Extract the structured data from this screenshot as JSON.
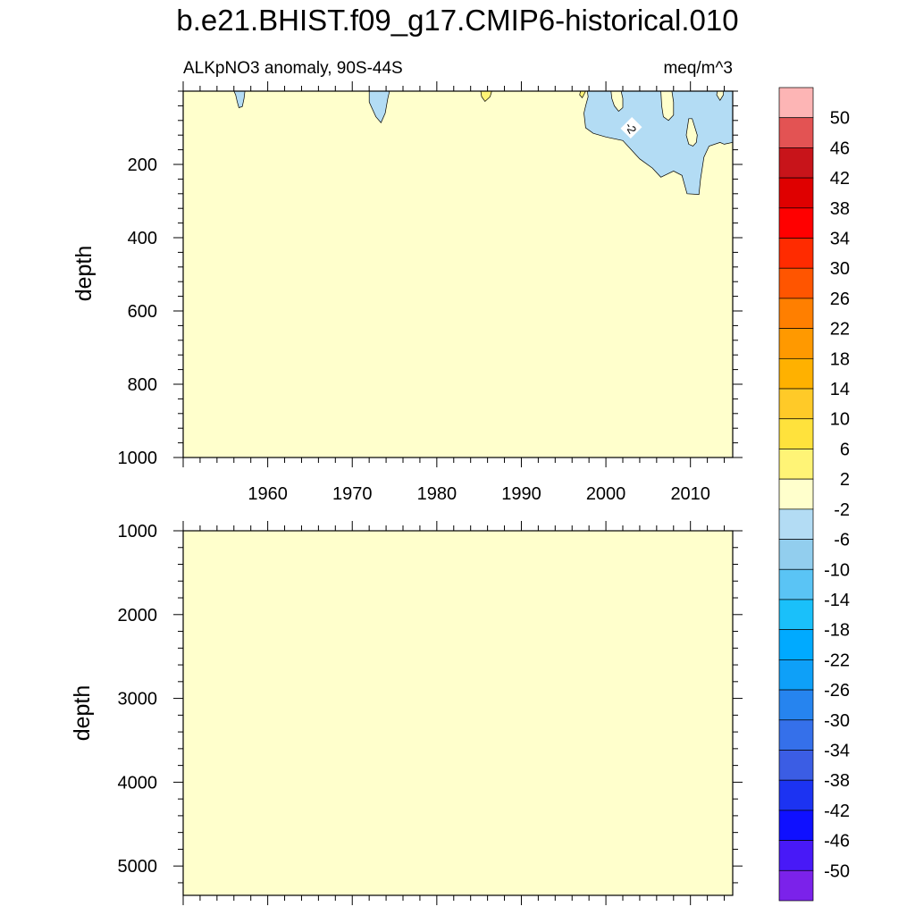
{
  "title": "b.e21.BHIST.f09_g17.CMIP6-historical.010",
  "colors": {
    "background": "#ffffff",
    "axis": "#000000",
    "contour_line": "#000000",
    "label_box": "#ffffff"
  },
  "chart_data": [
    {
      "type": "heatmap",
      "subtitle_left": "ALKpNO3 anomaly, 90S-44S",
      "subtitle_right": "meq/m^3",
      "ylabel": "depth",
      "xlim": [
        1950,
        2015
      ],
      "ylim": [
        0,
        1000
      ],
      "y_reversed": true,
      "x_ticks": [
        1960,
        1970,
        1980,
        1990,
        2000,
        2010
      ],
      "x_tick_labels": [
        "1960",
        "1970",
        "1980",
        "1990",
        "2000",
        "2010"
      ],
      "y_ticks": [
        200,
        400,
        600,
        800,
        1000
      ],
      "y_tick_labels": [
        "200",
        "400",
        "600",
        "800",
        "1000"
      ],
      "background_level": "-2 to 2",
      "background_color": "#ffffcc",
      "contour_labels": [
        {
          "text": "-2",
          "x": 2003,
          "y": 100
        }
      ],
      "regions": [
        {
          "name": "negative-anomaly-1957",
          "level": "-6 to -2",
          "color": "#b3dcf4",
          "points": [
            [
              1956.0,
              0
            ],
            [
              1956.2,
              10
            ],
            [
              1956.4,
              30
            ],
            [
              1956.6,
              45
            ],
            [
              1957.0,
              42
            ],
            [
              1957.2,
              20
            ],
            [
              1957.3,
              0
            ]
          ]
        },
        {
          "name": "negative-anomaly-1973",
          "level": "-6 to -2",
          "color": "#b3dcf4",
          "points": [
            [
              1972.0,
              0
            ],
            [
              1972.0,
              30
            ],
            [
              1972.8,
              70
            ],
            [
              1973.4,
              86
            ],
            [
              1973.9,
              60
            ],
            [
              1974.2,
              20
            ],
            [
              1974.4,
              0
            ]
          ]
        },
        {
          "name": "negative-anomaly-2008",
          "level": "-6 to -2",
          "color": "#b3dcf4",
          "points": [
            [
              1997.8,
              0
            ],
            [
              1997.9,
              15
            ],
            [
              1997.6,
              40
            ],
            [
              1997.4,
              60
            ],
            [
              1997.6,
              100
            ],
            [
              1998.5,
              115
            ],
            [
              2000.0,
              125
            ],
            [
              2002.0,
              135
            ],
            [
              2003.0,
              160
            ],
            [
              2004.0,
              185
            ],
            [
              2005.5,
              210
            ],
            [
              2006.5,
              235
            ],
            [
              2008.0,
              218
            ],
            [
              2009.0,
              230
            ],
            [
              2009.6,
              280
            ],
            [
              2011.0,
              282
            ],
            [
              2011.2,
              240
            ],
            [
              2011.6,
              180
            ],
            [
              2012.2,
              150
            ],
            [
              2013.5,
              140
            ],
            [
              2014.0,
              145
            ],
            [
              2015.0,
              140
            ],
            [
              2015.0,
              0
            ]
          ]
        },
        {
          "name": "weak-anomaly-1985",
          "level": "2 to 6",
          "color": "#fff476",
          "points": [
            [
              1985.2,
              0
            ],
            [
              1985.3,
              15
            ],
            [
              1985.7,
              28
            ],
            [
              1986.3,
              15
            ],
            [
              1986.5,
              0
            ]
          ]
        },
        {
          "name": "weak-anomaly-1998",
          "level": "2 to 6",
          "color": "#fff476",
          "points": [
            [
              1997.0,
              0
            ],
            [
              1996.9,
              10
            ],
            [
              1997.2,
              18
            ],
            [
              1997.5,
              5
            ],
            [
              1997.6,
              0
            ]
          ]
        },
        {
          "name": "weak-anomaly-2001",
          "level": "-2 to 2",
          "color": "#ffffcc",
          "points": [
            [
              2000.6,
              0
            ],
            [
              2000.7,
              20
            ],
            [
              2001.0,
              40
            ],
            [
              2001.5,
              55
            ],
            [
              2002.0,
              45
            ],
            [
              2002.0,
              20
            ],
            [
              2001.8,
              0
            ]
          ]
        },
        {
          "name": "weak-anomaly-2007",
          "level": "-2 to 2",
          "color": "#ffffcc",
          "points": [
            [
              2006.5,
              0
            ],
            [
              2006.6,
              40
            ],
            [
              2006.8,
              70
            ],
            [
              2007.4,
              80
            ],
            [
              2008.0,
              65
            ],
            [
              2008.0,
              30
            ],
            [
              2007.8,
              0
            ]
          ]
        },
        {
          "name": "weak-anomaly-2010",
          "level": "-2 to 2",
          "color": "#ffffcc",
          "points": [
            [
              2009.8,
              75
            ],
            [
              2009.5,
              120
            ],
            [
              2009.8,
              145
            ],
            [
              2010.3,
              150
            ],
            [
              2010.7,
              140
            ],
            [
              2010.8,
              120
            ],
            [
              2010.4,
              90
            ],
            [
              2010.2,
              75
            ]
          ]
        },
        {
          "name": "weak-anomaly-2013",
          "level": "-2 to 2",
          "color": "#ffffcc",
          "points": [
            [
              2013.2,
              0
            ],
            [
              2013.1,
              10
            ],
            [
              2013.5,
              25
            ],
            [
              2013.9,
              10
            ],
            [
              2013.9,
              0
            ]
          ]
        }
      ]
    },
    {
      "type": "heatmap",
      "ylabel": "depth",
      "xlim": [
        1950,
        2015
      ],
      "ylim": [
        1000,
        5350
      ],
      "y_reversed": true,
      "x_ticks": [
        1960,
        1970,
        1980,
        1990,
        2000,
        2010
      ],
      "y_ticks": [
        1000,
        2000,
        3000,
        4000,
        5000
      ],
      "y_tick_labels": [
        "1000",
        "2000",
        "3000",
        "4000",
        "5000"
      ],
      "background_level": "-2 to 2",
      "background_color": "#ffffcc",
      "regions": []
    }
  ],
  "colorbar": {
    "orientation": "vertical",
    "levels": [
      "50",
      "46",
      "42",
      "38",
      "34",
      "30",
      "26",
      "22",
      "18",
      "14",
      "10",
      "6",
      "2",
      "-2",
      "-6",
      "-10",
      "-14",
      "-18",
      "-22",
      "-26",
      "-30",
      "-34",
      "-38",
      "-42",
      "-46",
      "-50"
    ],
    "colors": [
      "#fdb5b5",
      "#e35353",
      "#c8141a",
      "#df0000",
      "#ff0000",
      "#ff2b00",
      "#ff5500",
      "#ff7f00",
      "#ff9900",
      "#ffb100",
      "#ffca28",
      "#ffe23c",
      "#fff476",
      "#ffffcc",
      "#b3dcf4",
      "#92ceee",
      "#5ac4f5",
      "#1ac0fa",
      "#00aaff",
      "#0ea0f8",
      "#2684ef",
      "#3570ea",
      "#3b5de4",
      "#1c33f2",
      "#0f10ff",
      "#4819f7",
      "#7b22ea"
    ]
  }
}
